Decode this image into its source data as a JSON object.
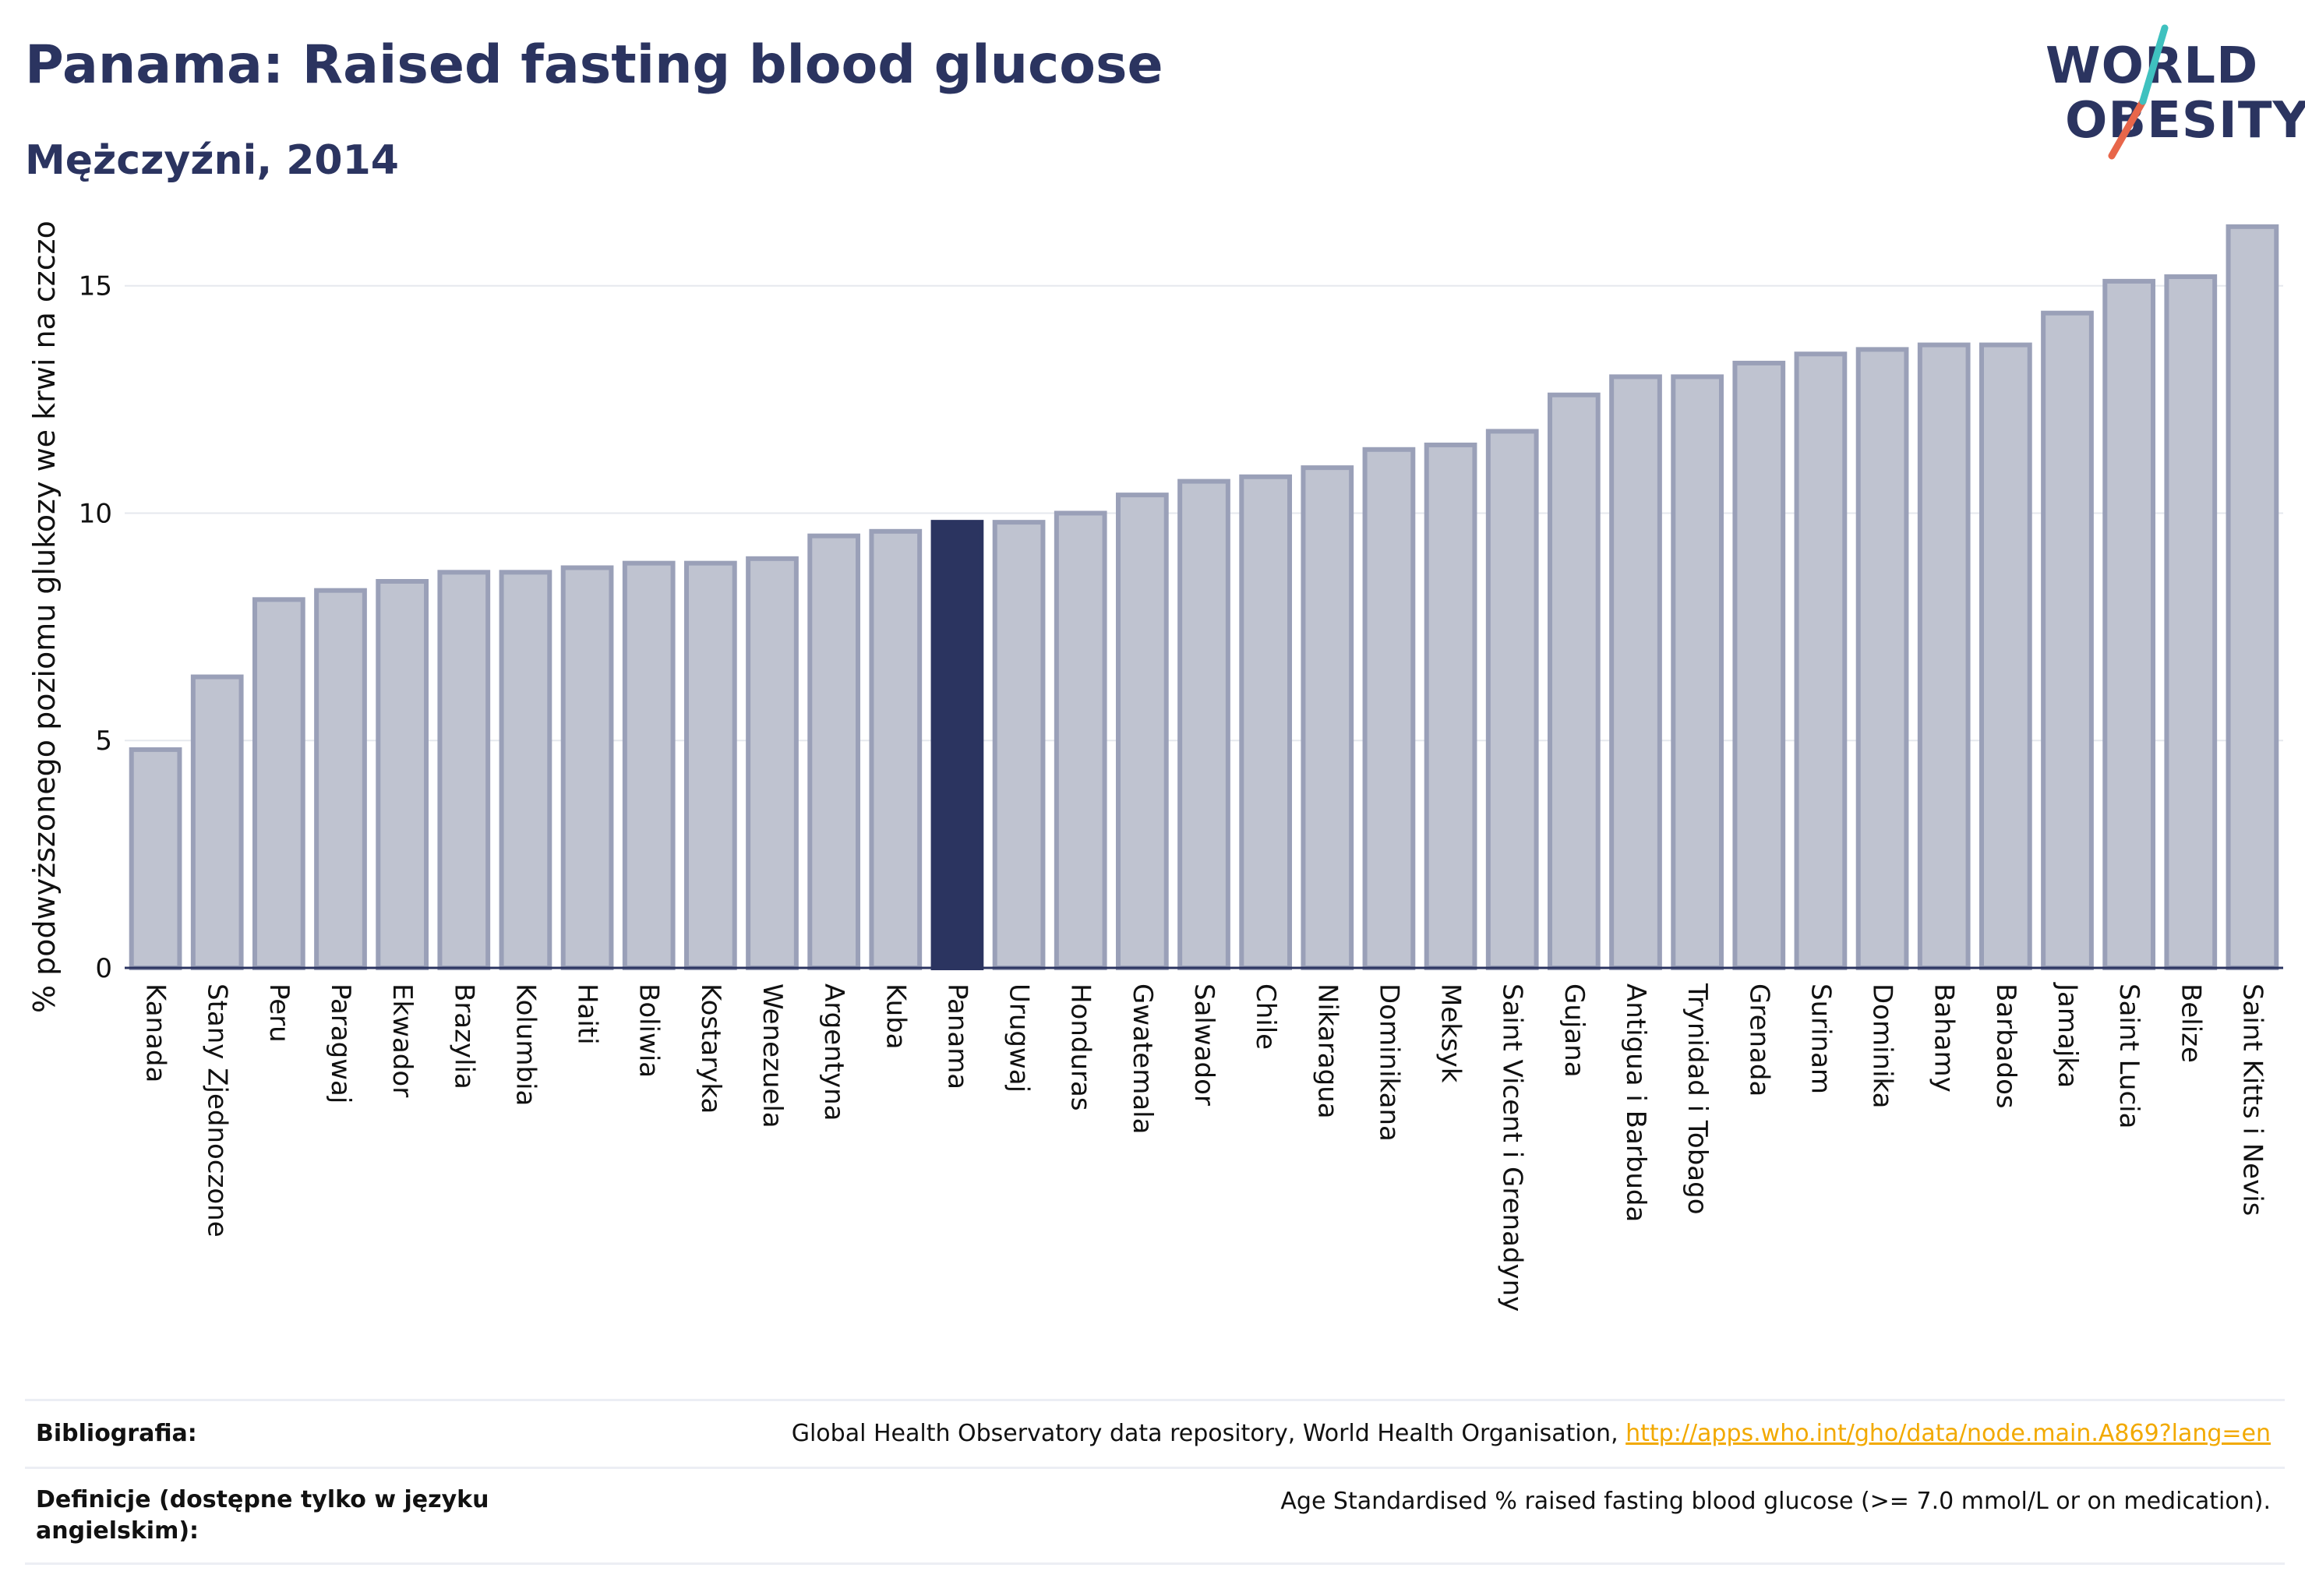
{
  "header": {
    "title": "Panama: Raised fasting blood glucose",
    "subtitle": "Mężczyźni, 2014"
  },
  "logo": {
    "line1": "WORLD",
    "line2": "OBESITY",
    "slash_colors": [
      "#3fc1bf",
      "#e8664a"
    ]
  },
  "colors": {
    "bar_default": "#bfc3d0",
    "bar_outline": "#9aa0b8",
    "bar_highlight": "#2b3460",
    "gridline": "#e6e8ee",
    "axis": "#2b3460"
  },
  "chart_data": {
    "type": "bar",
    "title": "Panama: Raised fasting blood glucose",
    "subtitle": "Mężczyźni, 2014",
    "xlabel": "",
    "ylabel": "% podwyższonego poziomu glukozy we krwi na czczo",
    "ylim": [
      0,
      17
    ],
    "yticks": [
      0,
      5,
      10,
      15
    ],
    "grid": true,
    "highlight": "Panama",
    "categories": [
      "Kanada",
      "Stany Zjednoczone",
      "Peru",
      "Paragwaj",
      "Ekwador",
      "Brazylia",
      "Kolumbia",
      "Haiti",
      "Boliwia",
      "Kostaryka",
      "Wenezuela",
      "Argentyna",
      "Kuba",
      "Panama",
      "Urugwaj",
      "Honduras",
      "Gwatemala",
      "Salwador",
      "Chile",
      "Nikaragua",
      "Dominikana",
      "Meksyk",
      "Saint Vicent i Grenadyny",
      "Gujana",
      "Antigua i Barbuda",
      "Trynidad i Tobago",
      "Grenada",
      "Surinam",
      "Dominika",
      "Bahamy",
      "Barbados",
      "Jamajka",
      "Saint Lucia",
      "Belize",
      "Saint Kitts i Nevis"
    ],
    "values": [
      4.8,
      6.4,
      8.1,
      8.3,
      8.5,
      8.7,
      8.7,
      8.8,
      8.9,
      8.9,
      9.0,
      9.5,
      9.6,
      9.8,
      9.8,
      10.0,
      10.4,
      10.7,
      10.8,
      11.0,
      11.4,
      11.5,
      11.8,
      12.6,
      13.0,
      13.0,
      13.3,
      13.5,
      13.6,
      13.7,
      13.7,
      14.4,
      15.1,
      15.2,
      16.3
    ]
  },
  "footer": {
    "bibliography_label": "Bibliografia:",
    "bibliography_text": "Global Health Observatory data repository, World Health Organisation, ",
    "bibliography_link": "http://apps.who.int/gho/data/node.main.A869?lang=en",
    "definitions_label": "Definicje (dostępne tylko w języku angielskim):",
    "definitions_text": "Age Standardised % raised fasting blood glucose (>= 7.0 mmol/L or on medication)."
  }
}
